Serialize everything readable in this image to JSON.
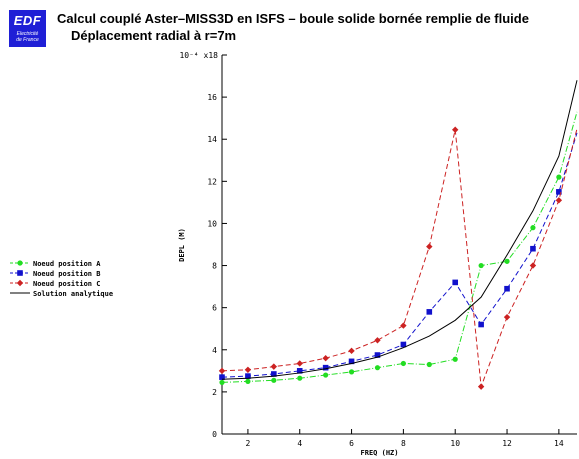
{
  "header": {
    "logo": {
      "brand": "EDF",
      "line1": "Electricité",
      "line2": "de France",
      "icon": "edf-logo"
    },
    "title": "Calcul couplé Aster–MISS3D en ISFS – boule solide bornée remplie de fluide",
    "subtitle": "Déplacement radial à r=7m"
  },
  "chart_data": {
    "type": "line",
    "xlabel": "FREQ (HZ)",
    "ylabel": "DEPL (M)",
    "y_exponent_label": "10⁻⁴ x",
    "xlim": [
      1,
      14.7
    ],
    "ylim": [
      0,
      18
    ],
    "x_ticks": [
      2,
      4,
      6,
      8,
      10,
      12,
      14
    ],
    "y_ticks": [
      0,
      2,
      4,
      6,
      8,
      10,
      12,
      14,
      16,
      18
    ],
    "legend_position": "left",
    "grid": false,
    "series": [
      {
        "name": "Noeud position A",
        "color": "#22dd22",
        "marker": "circle",
        "dash": "dash-dot",
        "x": [
          1,
          2,
          3,
          4,
          5,
          6,
          7,
          8,
          9,
          10,
          11,
          12,
          13,
          14,
          14.7
        ],
        "y": [
          2.45,
          2.5,
          2.55,
          2.65,
          2.8,
          2.95,
          3.15,
          3.35,
          3.3,
          3.55,
          8.0,
          8.2,
          9.8,
          12.2,
          15.3
        ]
      },
      {
        "name": "Noeud position B",
        "color": "#1111cc",
        "marker": "square",
        "dash": "dash",
        "x": [
          1,
          2,
          3,
          4,
          5,
          6,
          7,
          8,
          9,
          10,
          11,
          12,
          13,
          14,
          14.7
        ],
        "y": [
          2.7,
          2.75,
          2.85,
          3.0,
          3.15,
          3.45,
          3.75,
          4.25,
          5.8,
          7.2,
          5.2,
          6.9,
          8.8,
          11.5,
          14.3
        ]
      },
      {
        "name": "Noeud position C",
        "color": "#cc2222",
        "marker": "diamond",
        "dash": "dash",
        "x": [
          1,
          2,
          3,
          4,
          5,
          6,
          7,
          8,
          9,
          10,
          11,
          12,
          13,
          14,
          14.7
        ],
        "y": [
          3.0,
          3.05,
          3.2,
          3.35,
          3.6,
          3.95,
          4.45,
          5.15,
          8.9,
          14.45,
          2.25,
          5.55,
          8.0,
          11.1,
          14.5
        ]
      },
      {
        "name": "Solution analytique",
        "color": "#000000",
        "marker": "none",
        "dash": "solid",
        "x": [
          1,
          2,
          3,
          4,
          5,
          6,
          7,
          8,
          9,
          10,
          11,
          12,
          13,
          14,
          14.7
        ],
        "y": [
          2.6,
          2.65,
          2.75,
          2.9,
          3.1,
          3.35,
          3.65,
          4.1,
          4.65,
          5.4,
          6.5,
          8.5,
          10.6,
          13.2,
          16.8
        ]
      }
    ]
  }
}
